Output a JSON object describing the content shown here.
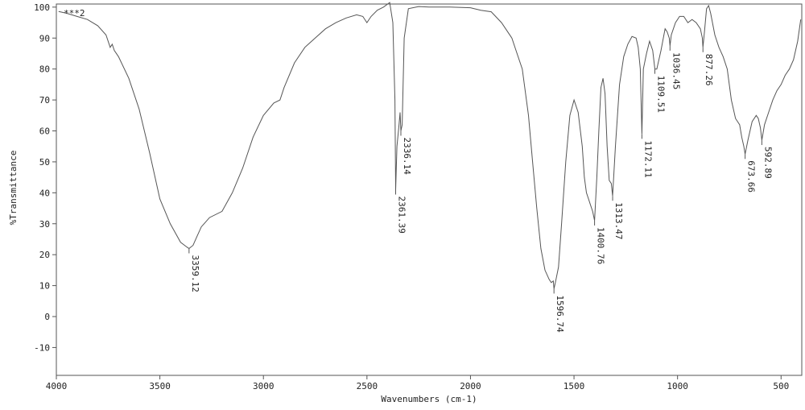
{
  "chart_data": {
    "type": "line",
    "title": "",
    "xlabel": "Wavenumbers (cm-1)",
    "ylabel": "%Transmittance",
    "series": [
      {
        "name": "***2",
        "x": [
          3989,
          3950,
          3900,
          3850,
          3800,
          3760,
          3740,
          3730,
          3720,
          3700,
          3650,
          3600,
          3550,
          3500,
          3450,
          3400,
          3370,
          3359.12,
          3340,
          3320,
          3300,
          3260,
          3200,
          3150,
          3100,
          3050,
          3000,
          2950,
          2920,
          2900,
          2850,
          2800,
          2750,
          2700,
          2650,
          2600,
          2550,
          2520,
          2500,
          2480,
          2450,
          2420,
          2390,
          2375,
          2365,
          2361.39,
          2355,
          2345,
          2340,
          2336.14,
          2330,
          2320,
          2300,
          2250,
          2200,
          2100,
          2000,
          1950,
          1900,
          1850,
          1800,
          1780,
          1750,
          1720,
          1700,
          1680,
          1660,
          1640,
          1620,
          1610,
          1600,
          1596.74,
          1590,
          1575,
          1560,
          1540,
          1520,
          1500,
          1480,
          1460,
          1450,
          1440,
          1430,
          1420,
          1410,
          1400.76,
          1390,
          1380,
          1370,
          1360,
          1350,
          1340,
          1330,
          1320,
          1313.47,
          1300,
          1280,
          1260,
          1240,
          1220,
          1200,
          1190,
          1180,
          1172.11,
          1165,
          1150,
          1135,
          1120,
          1109.51,
          1100,
          1080,
          1060,
          1050,
          1040,
          1036.45,
          1030,
          1010,
          990,
          970,
          950,
          930,
          910,
          890,
          880,
          877.26,
          870,
          860,
          850,
          840,
          820,
          800,
          780,
          760,
          740,
          720,
          700,
          690,
          680,
          673.66,
          660,
          640,
          620,
          610,
          600,
          592.89,
          580,
          560,
          540,
          520,
          500,
          480,
          460,
          440,
          420,
          405
        ],
        "y": [
          98.6,
          98.0,
          97.0,
          96.0,
          94.0,
          91.0,
          87.0,
          88.0,
          86.0,
          84.0,
          77.0,
          67.0,
          53.0,
          38.0,
          30.0,
          24.0,
          22.5,
          22.0,
          23.0,
          26.0,
          29.0,
          32.0,
          34.0,
          40.0,
          48.0,
          58.0,
          65.0,
          69.0,
          70.0,
          74.0,
          82.0,
          87.0,
          90.0,
          93.0,
          95.0,
          96.5,
          97.5,
          97.0,
          95.0,
          97.0,
          99.0,
          100.0,
          101.5,
          95.0,
          70.0,
          41.0,
          55.0,
          62.0,
          66.0,
          60.0,
          62.0,
          90.0,
          99.5,
          100.2,
          100.0,
          100.0,
          99.8,
          99.0,
          98.5,
          95.0,
          90.0,
          86.0,
          80.0,
          65.0,
          50.0,
          35.0,
          22.0,
          15.0,
          12.0,
          11.0,
          11.5,
          9.0,
          11.0,
          16.0,
          30.0,
          50.0,
          65.0,
          70.0,
          66.0,
          55.0,
          45.0,
          40.0,
          38.0,
          36.0,
          34.0,
          31.0,
          45.0,
          60.0,
          74.0,
          77.0,
          72.0,
          55.0,
          44.0,
          43.0,
          39.0,
          55.0,
          75.0,
          84.0,
          88.0,
          90.5,
          90.0,
          87.0,
          80.0,
          59.0,
          80.0,
          85.0,
          89.0,
          86.0,
          80.0,
          80.0,
          86.0,
          93.0,
          92.0,
          90.0,
          87.5,
          91.0,
          95.0,
          97.0,
          97.0,
          95.0,
          96.0,
          95.0,
          93.0,
          90.0,
          87.0,
          92.0,
          99.5,
          100.5,
          98.0,
          91.0,
          87.0,
          84.0,
          80.0,
          70.0,
          64.0,
          62.0,
          58.0,
          55.0,
          52.5,
          57.0,
          63.0,
          65.0,
          64.0,
          61.0,
          57.0,
          62.0,
          66.0,
          70.0,
          73.0,
          75.0,
          78.0,
          80.0,
          83.0,
          89.0,
          96.0
        ]
      }
    ],
    "xlim": [
      4000,
      400
    ],
    "ylim": [
      -19,
      101
    ],
    "xticks": [
      4000,
      3500,
      3000,
      2500,
      2000,
      1500,
      1000,
      500
    ],
    "yticks": [
      100,
      90,
      80,
      70,
      60,
      50,
      40,
      30,
      20,
      10,
      0,
      -10
    ],
    "peak_labels": [
      {
        "x": 3359.12,
        "y": 22.0,
        "text": "3359.12"
      },
      {
        "x": 2361.39,
        "y": 41.0,
        "text": "2361.39"
      },
      {
        "x": 2336.14,
        "y": 60.0,
        "text": "2336.14"
      },
      {
        "x": 1596.74,
        "y": 9.0,
        "text": "1596.74"
      },
      {
        "x": 1400.76,
        "y": 31.0,
        "text": "1400.76"
      },
      {
        "x": 1313.47,
        "y": 39.0,
        "text": "1313.47"
      },
      {
        "x": 1172.11,
        "y": 59.0,
        "text": "1172.11"
      },
      {
        "x": 1109.51,
        "y": 80.0,
        "text": "1109.51"
      },
      {
        "x": 1036.45,
        "y": 87.5,
        "text": "1036.45"
      },
      {
        "x": 877.26,
        "y": 87.0,
        "text": "877.26"
      },
      {
        "x": 673.66,
        "y": 52.5,
        "text": "673.66"
      },
      {
        "x": 592.89,
        "y": 57.0,
        "text": "592.89"
      }
    ],
    "grid": false,
    "legend": "top-left"
  }
}
